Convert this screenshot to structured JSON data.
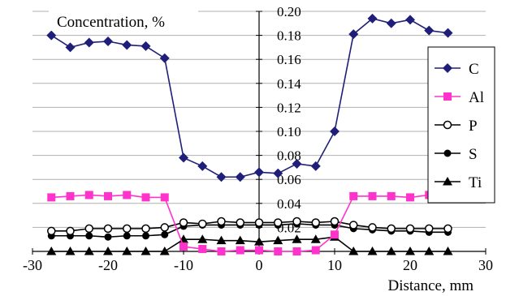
{
  "chart_data": {
    "type": "line",
    "title": "",
    "ylabel": "Concentration, %",
    "xlabel": "Distance, mm",
    "xlim": [
      -30,
      30
    ],
    "ylim": [
      0,
      0.2
    ],
    "x_ticks": [
      -30,
      -20,
      -10,
      0,
      10,
      20,
      30
    ],
    "x_tick_labels": [
      "-30",
      "-20",
      "-10",
      "0",
      "10",
      "20",
      "30"
    ],
    "y_ticks": [
      0.02,
      0.04,
      0.06,
      0.08,
      0.1,
      0.12,
      0.14,
      0.16,
      0.18,
      0.2
    ],
    "y_tick_labels": [
      "0.02",
      "0.04",
      "0.06",
      "0.08",
      "0.10",
      "0.12",
      "0.14",
      "0.16",
      "0.18",
      "0.20"
    ],
    "grid": "horizontal",
    "legend_position": "right",
    "x": [
      -27.5,
      -25,
      -22.5,
      -20,
      -17.5,
      -15,
      -12.5,
      -10,
      -7.5,
      -5,
      -2.5,
      0,
      2.5,
      5,
      7.5,
      10,
      12.5,
      15,
      17.5,
      20,
      22.5,
      25
    ],
    "series": [
      {
        "name": "C",
        "marker": "diamond",
        "color": "#1f1f7a",
        "values": [
          0.18,
          0.17,
          0.174,
          0.175,
          0.172,
          0.171,
          0.161,
          0.078,
          0.071,
          0.062,
          0.062,
          0.066,
          0.065,
          0.073,
          0.071,
          0.1,
          0.181,
          0.194,
          0.19,
          0.193,
          0.184,
          0.182
        ]
      },
      {
        "name": "Al",
        "marker": "square",
        "color": "#ff33cc",
        "values": [
          0.045,
          0.046,
          0.047,
          0.046,
          0.047,
          0.045,
          0.045,
          0.004,
          0.002,
          0.0,
          0.001,
          0.001,
          0.0,
          0.0,
          0.001,
          0.014,
          0.046,
          0.046,
          0.046,
          0.045,
          0.047,
          0.047
        ]
      },
      {
        "name": "P",
        "marker": "circle-open",
        "color": "#000000",
        "values": [
          0.017,
          0.017,
          0.019,
          0.019,
          0.019,
          0.019,
          0.02,
          0.024,
          0.023,
          0.025,
          0.024,
          0.024,
          0.024,
          0.025,
          0.024,
          0.025,
          0.022,
          0.02,
          0.019,
          0.019,
          0.019,
          0.019
        ]
      },
      {
        "name": "S",
        "marker": "circle-filled",
        "color": "#000000",
        "values": [
          0.013,
          0.013,
          0.013,
          0.012,
          0.013,
          0.013,
          0.014,
          0.021,
          0.022,
          0.022,
          0.022,
          0.022,
          0.022,
          0.023,
          0.022,
          0.022,
          0.019,
          0.018,
          0.017,
          0.017,
          0.016,
          0.016
        ]
      },
      {
        "name": "Ti",
        "marker": "triangle",
        "color": "#000000",
        "values": [
          0.0,
          0.0,
          0.0,
          0.0,
          0.0,
          0.0,
          0.0,
          0.01,
          0.01,
          0.009,
          0.009,
          0.008,
          0.009,
          0.01,
          0.01,
          0.012,
          0.0,
          0.0,
          0.0,
          0.0,
          0.0,
          0.0
        ]
      }
    ]
  }
}
